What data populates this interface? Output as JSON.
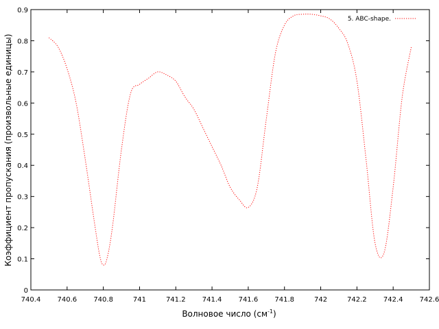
{
  "chart_data": {
    "type": "line",
    "xlabel": "Волновое число (см",
    "xlabel_sup": "-1",
    "xlabel_end": ")",
    "ylabel": "Коэффициент пропускания (произвольные единицы)",
    "xlim": [
      740.4,
      742.6
    ],
    "ylim": [
      0,
      0.9
    ],
    "xticks": [
      740.4,
      740.6,
      740.8,
      741,
      741.2,
      741.4,
      741.6,
      741.8,
      742,
      742.2,
      742.4,
      742.6
    ],
    "xtick_labels": [
      "740.4",
      "740.6",
      "740.8",
      "741",
      "741.2",
      "741.4",
      "741.6",
      "741.8",
      "742",
      "742.2",
      "742.4",
      "742.6"
    ],
    "yticks": [
      0,
      0.1,
      0.2,
      0.3,
      0.4,
      0.5,
      0.6,
      0.7,
      0.8,
      0.9
    ],
    "ytick_labels": [
      "0",
      "0.1",
      "0.2",
      "0.3",
      "0.4",
      "0.5",
      "0.6",
      "0.7",
      "0.8",
      "0.9"
    ],
    "grid": false,
    "legend_position": "top-right",
    "series": [
      {
        "name": "5. ABC-shape.",
        "color": "#ff0000",
        "style": "dotted",
        "x": [
          740.5,
          740.55,
          740.6,
          740.65,
          740.7,
          740.75,
          740.78,
          740.8,
          740.82,
          740.85,
          740.9,
          740.95,
          741.0,
          741.05,
          741.1,
          741.15,
          741.2,
          741.25,
          741.3,
          741.35,
          741.4,
          741.45,
          741.5,
          741.55,
          741.6,
          741.65,
          741.7,
          741.75,
          741.8,
          741.85,
          741.9,
          741.95,
          742.0,
          742.05,
          742.1,
          742.15,
          742.2,
          742.25,
          742.3,
          742.35,
          742.4,
          742.45,
          742.5
        ],
        "y": [
          0.81,
          0.78,
          0.71,
          0.6,
          0.42,
          0.22,
          0.11,
          0.08,
          0.1,
          0.2,
          0.45,
          0.63,
          0.66,
          0.68,
          0.7,
          0.69,
          0.67,
          0.62,
          0.58,
          0.52,
          0.46,
          0.4,
          0.33,
          0.29,
          0.265,
          0.33,
          0.55,
          0.76,
          0.85,
          0.88,
          0.885,
          0.885,
          0.88,
          0.87,
          0.84,
          0.79,
          0.67,
          0.42,
          0.15,
          0.12,
          0.33,
          0.62,
          0.78
        ]
      }
    ]
  }
}
